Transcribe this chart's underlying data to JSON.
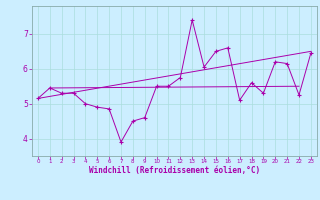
{
  "xlabel": "Windchill (Refroidissement éolien,°C)",
  "bg_color": "#cceeff",
  "line_color": "#aa00aa",
  "x_values": [
    0,
    1,
    2,
    3,
    4,
    5,
    6,
    7,
    8,
    9,
    10,
    11,
    12,
    13,
    14,
    15,
    16,
    17,
    18,
    19,
    20,
    21,
    22,
    23
  ],
  "y_main": [
    5.15,
    5.45,
    5.3,
    5.3,
    5.0,
    4.9,
    4.85,
    3.9,
    4.5,
    4.6,
    5.5,
    5.5,
    5.75,
    7.4,
    6.05,
    6.5,
    6.6,
    5.1,
    5.6,
    5.3,
    6.2,
    6.15,
    5.25,
    6.45
  ],
  "y_reg1_start": 5.15,
  "y_reg1_end": 6.5,
  "y_reg2_start": 5.45,
  "y_reg2_end": 5.5,
  "ylim": [
    3.5,
    7.8
  ],
  "xlim": [
    -0.5,
    23.5
  ],
  "yticks": [
    4,
    5,
    6,
    7
  ],
  "xticks": [
    0,
    1,
    2,
    3,
    4,
    5,
    6,
    7,
    8,
    9,
    10,
    11,
    12,
    13,
    14,
    15,
    16,
    17,
    18,
    19,
    20,
    21,
    22,
    23
  ],
  "grid_color": "#aadddd",
  "spine_color": "#88aaaa"
}
